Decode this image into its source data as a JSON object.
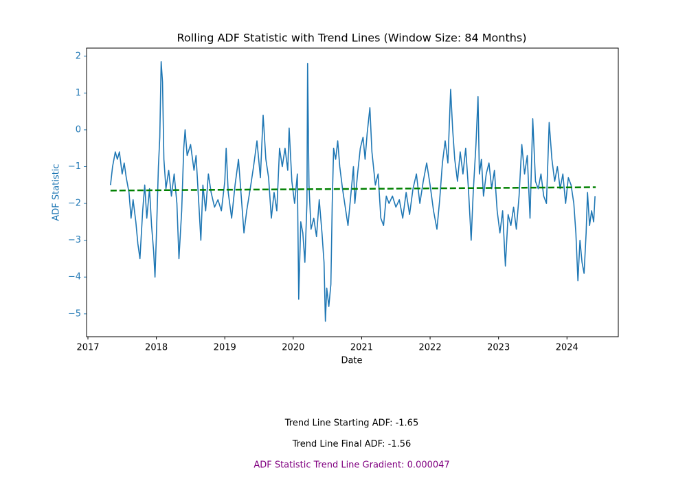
{
  "chart_data": {
    "type": "line",
    "title": "Rolling ADF Statistic with Trend Lines (Window Size: 84 Months)",
    "xlabel": "Date",
    "ylabel": "ADF Statistic",
    "ylabel_color": "#1f77b4",
    "xlim": [
      2016.98,
      2024.75
    ],
    "xticks": [
      2017,
      2018,
      2019,
      2020,
      2021,
      2022,
      2023,
      2024
    ],
    "ylim": [
      -5.62,
      2.22
    ],
    "yticks": [
      {
        "value": -5,
        "label": "−5"
      },
      {
        "value": -4,
        "label": "−4"
      },
      {
        "value": -3,
        "label": "−3"
      },
      {
        "value": -2,
        "label": "−2"
      },
      {
        "value": -1,
        "label": "−1"
      },
      0,
      1,
      2
    ],
    "series": [
      {
        "color": "#1f77b4",
        "dash": false,
        "x": [
          2017.33,
          2017.36,
          2017.4,
          2017.43,
          2017.46,
          2017.5,
          2017.53,
          2017.56,
          2017.6,
          2017.63,
          2017.66,
          2017.7,
          2017.73,
          2017.76,
          2017.8,
          2017.83,
          2017.86,
          2017.9,
          2017.93,
          2017.96,
          2017.98,
          2018.0,
          2018.03,
          2018.05,
          2018.07,
          2018.09,
          2018.11,
          2018.14,
          2018.18,
          2018.22,
          2018.26,
          2018.3,
          2018.33,
          2018.37,
          2018.4,
          2018.42,
          2018.45,
          2018.5,
          2018.55,
          2018.58,
          2018.62,
          2018.65,
          2018.68,
          2018.72,
          2018.76,
          2018.8,
          2018.85,
          2018.9,
          2018.95,
          2019.0,
          2019.02,
          2019.05,
          2019.1,
          2019.15,
          2019.2,
          2019.24,
          2019.28,
          2019.32,
          2019.38,
          2019.42,
          2019.47,
          2019.52,
          2019.56,
          2019.6,
          2019.64,
          2019.68,
          2019.72,
          2019.76,
          2019.8,
          2019.84,
          2019.88,
          2019.92,
          2019.94,
          2019.98,
          2020.02,
          2020.06,
          2020.08,
          2020.11,
          2020.14,
          2020.17,
          2020.2,
          2020.21,
          2020.23,
          2020.26,
          2020.3,
          2020.34,
          2020.38,
          2020.42,
          2020.45,
          2020.47,
          2020.49,
          2020.52,
          2020.55,
          2020.57,
          2020.59,
          2020.62,
          2020.65,
          2020.68,
          2020.72,
          2020.76,
          2020.8,
          2020.84,
          2020.88,
          2020.9,
          2020.94,
          2020.98,
          2021.02,
          2021.05,
          2021.08,
          2021.12,
          2021.15,
          2021.2,
          2021.24,
          2021.28,
          2021.32,
          2021.36,
          2021.4,
          2021.45,
          2021.5,
          2021.55,
          2021.6,
          2021.65,
          2021.7,
          2021.75,
          2021.8,
          2021.85,
          2021.9,
          2021.95,
          2022.0,
          2022.05,
          2022.1,
          2022.14,
          2022.18,
          2022.22,
          2022.26,
          2022.3,
          2022.33,
          2022.36,
          2022.4,
          2022.44,
          2022.48,
          2022.52,
          2022.56,
          2022.6,
          2022.63,
          2022.67,
          2022.7,
          2022.72,
          2022.75,
          2022.78,
          2022.82,
          2022.86,
          2022.9,
          2022.94,
          2022.98,
          2023.02,
          2023.06,
          2023.1,
          2023.14,
          2023.18,
          2023.22,
          2023.26,
          2023.3,
          2023.34,
          2023.38,
          2023.42,
          2023.46,
          2023.5,
          2023.54,
          2023.58,
          2023.62,
          2023.66,
          2023.7,
          2023.74,
          2023.78,
          2023.82,
          2023.86,
          2023.9,
          2023.94,
          2023.98,
          2024.02,
          2024.06,
          2024.1,
          2024.13,
          2024.16,
          2024.19,
          2024.22,
          2024.25,
          2024.28,
          2024.3,
          2024.33,
          2024.36,
          2024.39,
          2024.41
        ],
        "values": [
          -1.5,
          -1.0,
          -0.6,
          -0.8,
          -0.6,
          -1.2,
          -0.9,
          -1.3,
          -1.7,
          -2.4,
          -1.9,
          -2.5,
          -3.1,
          -3.5,
          -2.2,
          -1.5,
          -2.4,
          -1.6,
          -2.6,
          -3.3,
          -4.0,
          -2.9,
          -1.0,
          -0.2,
          1.85,
          1.3,
          -0.8,
          -1.6,
          -1.1,
          -1.8,
          -1.2,
          -2.0,
          -3.5,
          -2.2,
          -0.5,
          0.0,
          -0.7,
          -0.4,
          -1.1,
          -0.7,
          -2.0,
          -3.0,
          -1.5,
          -2.2,
          -1.2,
          -1.7,
          -2.1,
          -1.9,
          -2.2,
          -1.4,
          -0.5,
          -1.7,
          -2.4,
          -1.5,
          -0.8,
          -1.8,
          -2.8,
          -2.2,
          -1.5,
          -1.0,
          -0.3,
          -1.3,
          0.4,
          -0.8,
          -1.3,
          -2.4,
          -1.7,
          -2.2,
          -0.5,
          -1.0,
          -0.5,
          -1.1,
          0.05,
          -1.4,
          -2.0,
          -1.2,
          -4.6,
          -2.5,
          -2.8,
          -3.6,
          -2.0,
          1.8,
          -1.5,
          -2.7,
          -2.4,
          -2.9,
          -1.9,
          -2.8,
          -3.6,
          -5.2,
          -4.3,
          -4.8,
          -4.2,
          -2.0,
          -0.5,
          -0.8,
          -0.3,
          -1.0,
          -1.6,
          -2.1,
          -2.6,
          -1.8,
          -1.0,
          -2.0,
          -1.2,
          -0.5,
          -0.2,
          -0.8,
          -0.1,
          0.6,
          -0.6,
          -1.5,
          -1.2,
          -2.4,
          -2.6,
          -1.8,
          -2.0,
          -1.8,
          -2.1,
          -1.9,
          -2.4,
          -1.7,
          -2.3,
          -1.6,
          -1.2,
          -2.0,
          -1.4,
          -0.9,
          -1.5,
          -2.2,
          -2.7,
          -1.9,
          -0.9,
          -0.3,
          -0.9,
          1.1,
          0.0,
          -0.8,
          -1.4,
          -0.6,
          -1.2,
          -0.5,
          -1.6,
          -3.0,
          -1.7,
          -0.4,
          0.9,
          -1.2,
          -0.8,
          -1.8,
          -1.2,
          -0.9,
          -1.6,
          -1.1,
          -2.2,
          -2.8,
          -2.2,
          -3.7,
          -2.3,
          -2.6,
          -2.1,
          -2.7,
          -1.8,
          -0.4,
          -1.2,
          -0.7,
          -2.4,
          0.3,
          -1.4,
          -1.6,
          -1.2,
          -1.8,
          -2.0,
          0.2,
          -0.8,
          -1.4,
          -1.0,
          -1.6,
          -1.2,
          -2.0,
          -1.3,
          -1.5,
          -2.0,
          -2.8,
          -4.1,
          -3.0,
          -3.6,
          -3.9,
          -2.8,
          -1.7,
          -2.6,
          -2.2,
          -2.5,
          -1.8
        ]
      },
      {
        "color": "#008000",
        "dash": true,
        "x": [
          2017.33,
          2024.42
        ],
        "values": [
          -1.65,
          -1.56
        ]
      }
    ],
    "annotations": [
      {
        "text": "Trend Line Starting ADF: -1.65",
        "color": "#000000"
      },
      {
        "text": "Trend Line Final ADF: -1.56",
        "color": "#000000"
      },
      {
        "text": "ADF Statistic Trend Line Gradient: 0.000047",
        "color": "#800080"
      }
    ]
  }
}
